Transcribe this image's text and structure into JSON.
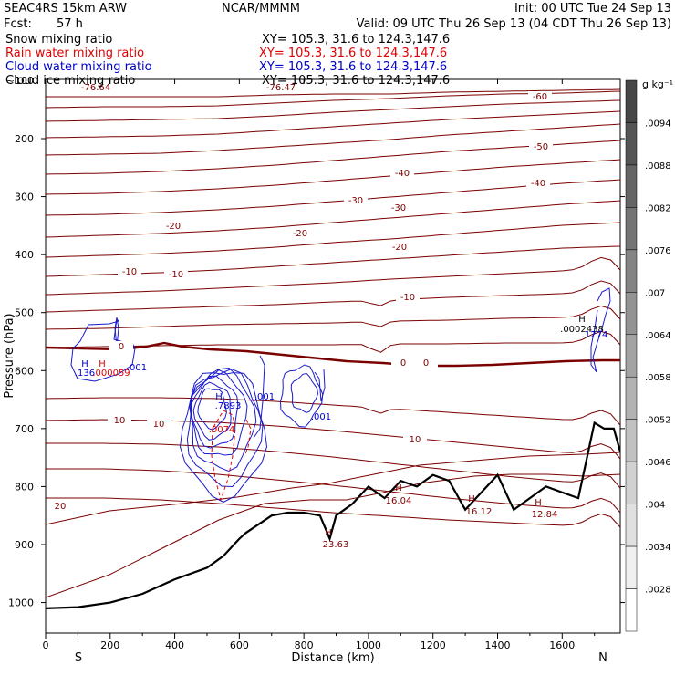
{
  "header": {
    "model": "SEAC4RS 15km ARW",
    "center": "NCAR/MMMM",
    "init": "Init: 00 UTC Tue 24 Sep 13",
    "fcst_label": "Fcst:",
    "fcst_value": "57 h",
    "valid": "Valid: 09 UTC Thu 26 Sep 13 (04 CDT Thu 26 Sep 13)"
  },
  "fields": [
    {
      "name": "Snow mixing ratio",
      "xy": "XY= 105.3, 31.6 to 124.3,147.6",
      "color": "#000000"
    },
    {
      "name": "Rain water mixing ratio",
      "xy": "XY= 105.3, 31.6 to 124.3,147.6",
      "color": "#e00000"
    },
    {
      "name": "Cloud water mixing ratio",
      "xy": "XY= 105.3, 31.6 to 124.3,147.6",
      "color": "#0000cc"
    },
    {
      "name": "Cloud ice mixing ratio",
      "xy": "XY= 105.3, 31.6 to 124.3,147.6",
      "color": "#000000"
    }
  ],
  "chart_data": {
    "type": "line",
    "title": "",
    "xlabel": "Distance (km)",
    "ylabel": "Pressure (hPa)",
    "xlim": [
      0,
      1780
    ],
    "ylim": [
      1050,
      100
    ],
    "xticks": [
      0,
      200,
      400,
      600,
      800,
      1000,
      1200,
      1400,
      1600
    ],
    "yticks": [
      200,
      300,
      400,
      500,
      600,
      700,
      800,
      900,
      1000
    ],
    "y_top_label": "~100",
    "endpoint_left": "S",
    "endpoint_right": "N",
    "colorbar": {
      "unit": "g kg⁻¹",
      "ticks": [
        ".0094",
        ".0088",
        ".0082",
        ".0076",
        ".007",
        ".0064",
        ".0058",
        ".0052",
        ".0046",
        ".004",
        ".0034",
        ".0028"
      ]
    },
    "series": [
      {
        "name": "Temperature contours",
        "color": "#800000",
        "contour_labels": [
          "-76.64",
          "-76.47",
          "-60",
          "-50",
          "-40",
          "-40",
          "-30",
          "-30",
          "-20",
          "-20",
          "-20",
          "-10",
          "-10",
          "-10",
          "0",
          "0",
          "0",
          "10",
          "10",
          "10",
          "20"
        ]
      },
      {
        "name": "Terrain",
        "color": "#000000",
        "x": [
          0,
          100,
          200,
          300,
          400,
          500,
          550,
          600,
          620,
          700,
          750,
          800,
          850,
          880,
          900,
          950,
          1000,
          1050,
          1100,
          1150,
          1200,
          1250,
          1300,
          1350,
          1400,
          1450,
          1500,
          1550,
          1600,
          1650,
          1700,
          1730,
          1760,
          1780
        ],
        "y": [
          1010,
          1008,
          1000,
          985,
          960,
          940,
          920,
          890,
          880,
          850,
          845,
          845,
          850,
          890,
          850,
          830,
          800,
          820,
          790,
          800,
          780,
          790,
          840,
          810,
          780,
          840,
          820,
          800,
          810,
          820,
          690,
          700,
          700,
          740
        ]
      }
    ],
    "max_labels": [
      {
        "text": "H",
        "sub": ".136",
        "color": "#0000cc"
      },
      {
        "text": "H",
        "sub": ".000059",
        "color": "#e00000"
      },
      {
        "text": ".001",
        "color": "#0000cc"
      },
      {
        "text": "H",
        "sub": ".7893",
        "color": "#0000cc"
      },
      {
        "text": ".0074",
        "color": "#e00000"
      },
      {
        "text": ".001",
        "color": "#0000cc"
      },
      {
        "text": ".001",
        "color": "#0000cc"
      },
      {
        "text": "H",
        "sub": ".0002438",
        "color": "#000000"
      },
      {
        "text": ".1274",
        "color": "#0000cc"
      },
      {
        "text": "H",
        "sub": "16.04",
        "color": "#800000"
      },
      {
        "text": "H",
        "sub": "16.12",
        "color": "#800000"
      },
      {
        "text": "H",
        "sub": "12.84",
        "color": "#800000"
      },
      {
        "text": "H",
        "sub": "23.63",
        "color": "#800000"
      }
    ]
  }
}
